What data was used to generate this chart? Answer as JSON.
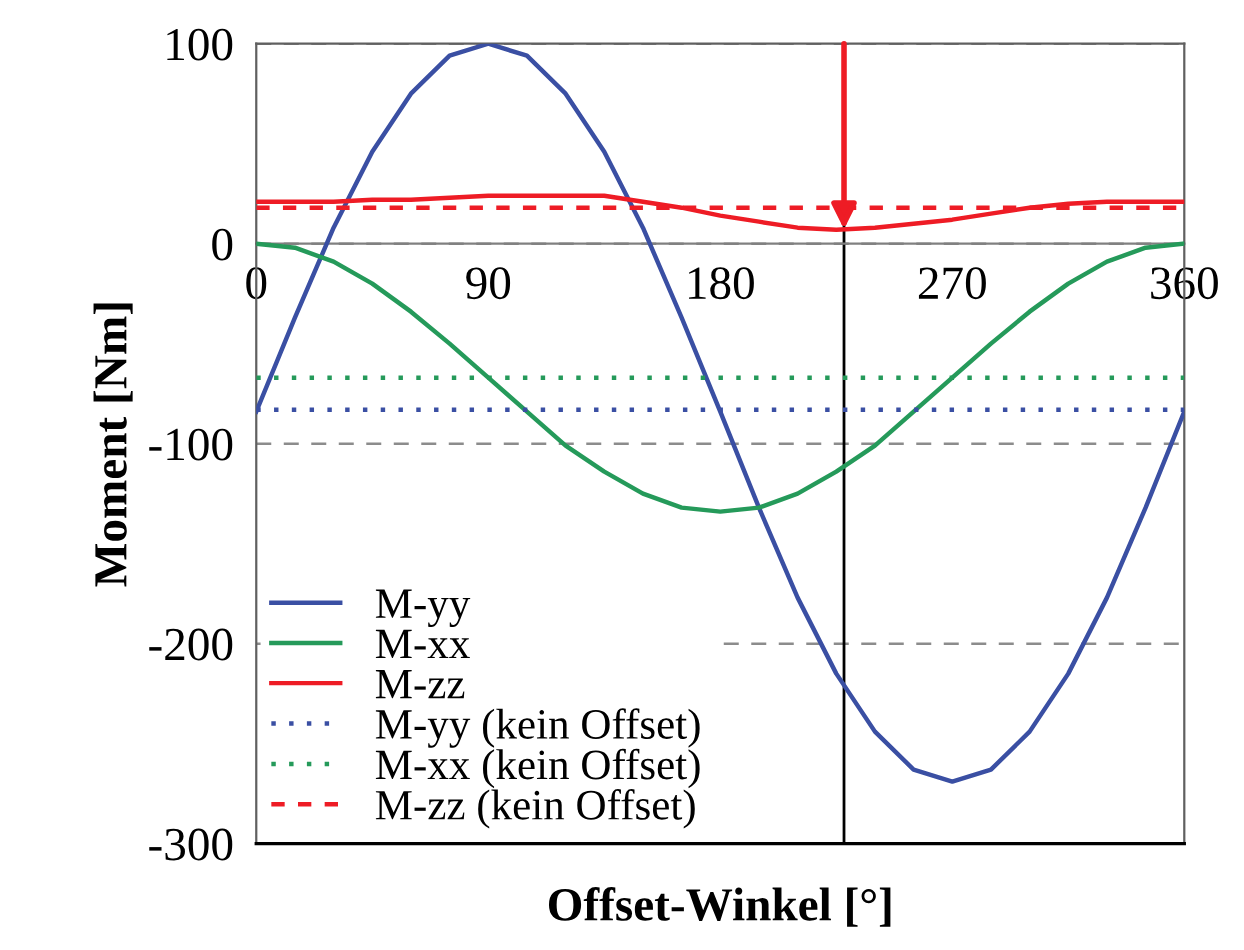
{
  "chart_data": {
    "type": "line",
    "xlabel": "Offset-Winkel [°]",
    "ylabel": "Moment [Nm]",
    "xlim": [
      0,
      360
    ],
    "xticks": [
      0,
      90,
      180,
      270,
      360
    ],
    "ylim": [
      -300,
      100
    ],
    "yticks": [
      100,
      0,
      -100,
      -200,
      -300
    ],
    "grid": "y",
    "legend": "bottom left",
    "marker": "none",
    "ref_lines": [
      {
        "axis": "x",
        "value": 228,
        "color": "#000000",
        "line_style": "solid"
      }
    ],
    "series": [
      {
        "name": "M-yy",
        "color": "#3a4fa3",
        "line_style": "solid",
        "x": [
          0,
          15,
          30,
          45,
          60,
          75,
          90,
          105,
          120,
          135,
          150,
          165,
          180,
          195,
          210,
          225,
          240,
          255,
          270,
          285,
          300,
          315,
          330,
          345,
          360
        ],
        "values": [
          -84,
          -37,
          8,
          46,
          75,
          94,
          100,
          94,
          75,
          46,
          8,
          -37,
          -84,
          -132,
          -177,
          -215,
          -244,
          -263,
          -269,
          -263,
          -244,
          -215,
          -177,
          -132,
          -84
        ]
      },
      {
        "name": "M-xx",
        "color": "#259a5a",
        "line_style": "solid",
        "x": [
          0,
          15,
          30,
          45,
          60,
          75,
          90,
          105,
          120,
          135,
          150,
          165,
          180,
          195,
          210,
          225,
          240,
          255,
          270,
          285,
          300,
          315,
          330,
          345,
          360
        ],
        "values": [
          0,
          -2,
          -9,
          -20,
          -34,
          -50,
          -67,
          -84,
          -101,
          -114,
          -125,
          -132,
          -134,
          -132,
          -125,
          -114,
          -101,
          -84,
          -67,
          -50,
          -34,
          -20,
          -9,
          -2,
          0
        ]
      },
      {
        "name": "M-zz",
        "color": "#ee1c25",
        "line_style": "solid",
        "x": [
          0,
          15,
          30,
          45,
          60,
          75,
          90,
          105,
          120,
          135,
          150,
          165,
          180,
          195,
          210,
          225,
          240,
          255,
          270,
          285,
          300,
          315,
          330,
          345,
          360
        ],
        "values": [
          21,
          21,
          21,
          22,
          22,
          23,
          24,
          24,
          24,
          24,
          21,
          18,
          14,
          11,
          8,
          7,
          8,
          10,
          12,
          15,
          18,
          20,
          21,
          21,
          21
        ]
      },
      {
        "name": "M-yy (kein Offset)",
        "color": "#3a4fa3",
        "line_style": "dotted",
        "x": [
          0,
          360
        ],
        "values": [
          -83,
          -83
        ]
      },
      {
        "name": "M-xx (kein Offset)",
        "color": "#259a5a",
        "line_style": "dotted",
        "x": [
          0,
          360
        ],
        "values": [
          -67,
          -67
        ]
      },
      {
        "name": "M-zz (kein Offset)",
        "color": "#ee1c25",
        "line_style": "dashed",
        "x": [
          0,
          360
        ],
        "values": [
          18,
          18
        ]
      }
    ]
  }
}
